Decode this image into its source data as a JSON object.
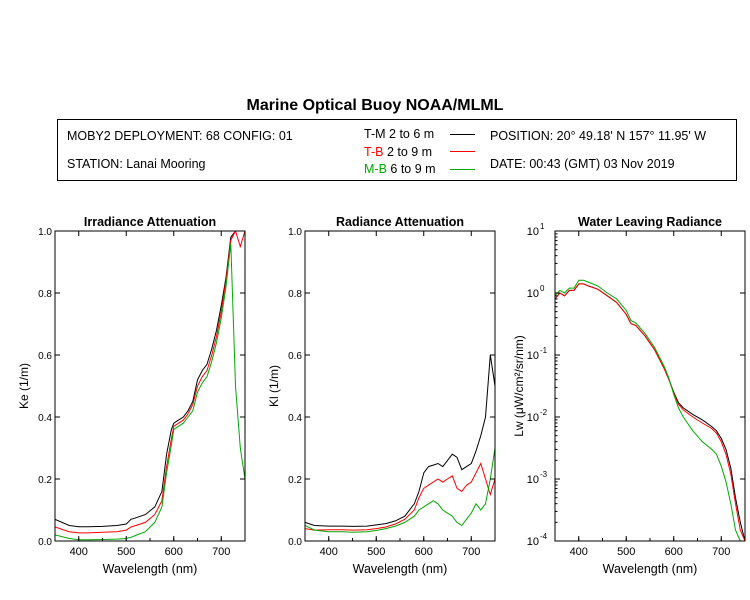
{
  "header": {
    "title": "Marine Optical Buoy NOAA/MLML"
  },
  "info": {
    "deployment": "MOBY2 DEPLOYMENT: 68 CONFIG: 01",
    "station": "STATION: Lanai Mooring",
    "position": "POSITION: 20° 49.18' N   157° 11.95' W",
    "date": "DATE: 00:43 (GMT) 03 Nov 2019",
    "legend": [
      {
        "code": "T-M",
        "range": "2 to 6  m",
        "color": "#000000"
      },
      {
        "code": "T-B",
        "range": "2 to 9  m",
        "color": "#ff0000"
      },
      {
        "code": "M-B",
        "range": "6 to 9  m",
        "color": "#00aa00"
      }
    ]
  },
  "chart_data": [
    {
      "type": "line",
      "title": "Irradiance Attenuation",
      "xlabel": "Wavelength (nm)",
      "ylabel": "Ke  (1/m)",
      "xlim": [
        350,
        750
      ],
      "ylim": [
        0,
        1.0
      ],
      "xticks": [
        "400",
        "500",
        "600",
        "700"
      ],
      "yticks": [
        "0.0",
        "0.2",
        "0.4",
        "0.6",
        "0.8",
        "1.0"
      ],
      "x": [
        350,
        380,
        400,
        420,
        450,
        480,
        500,
        510,
        520,
        540,
        560,
        575,
        585,
        595,
        600,
        610,
        620,
        630,
        640,
        650,
        660,
        670,
        680,
        690,
        700,
        710,
        720,
        730,
        740,
        750
      ],
      "series": [
        {
          "name": "T-M",
          "color": "#000000",
          "values": [
            0.07,
            0.05,
            0.046,
            0.046,
            0.047,
            0.05,
            0.055,
            0.07,
            0.075,
            0.085,
            0.11,
            0.16,
            0.28,
            0.36,
            0.38,
            0.39,
            0.4,
            0.42,
            0.45,
            0.52,
            0.55,
            0.57,
            0.62,
            0.68,
            0.76,
            0.85,
            0.98,
            1.0,
            1.0,
            1.0
          ]
        },
        {
          "name": "T-B",
          "color": "#ff0000",
          "values": [
            0.045,
            0.03,
            0.026,
            0.026,
            0.028,
            0.03,
            0.035,
            0.045,
            0.05,
            0.06,
            0.085,
            0.13,
            0.24,
            0.33,
            0.37,
            0.38,
            0.39,
            0.41,
            0.44,
            0.5,
            0.53,
            0.55,
            0.6,
            0.66,
            0.74,
            0.84,
            0.97,
            1.0,
            0.95,
            1.0
          ]
        },
        {
          "name": "M-B",
          "color": "#00aa00",
          "values": [
            0.02,
            0.008,
            0.004,
            0.004,
            0.005,
            0.006,
            0.008,
            0.012,
            0.018,
            0.03,
            0.06,
            0.11,
            0.22,
            0.31,
            0.36,
            0.37,
            0.38,
            0.4,
            0.42,
            0.48,
            0.51,
            0.53,
            0.58,
            0.64,
            0.72,
            0.82,
            0.96,
            0.5,
            0.3,
            0.2
          ]
        }
      ]
    },
    {
      "type": "line",
      "title": "Radiance Attenuation",
      "xlabel": "Wavelength (nm)",
      "ylabel": "Kl  (1/m)",
      "xlim": [
        350,
        750
      ],
      "ylim": [
        0,
        1.0
      ],
      "xticks": [
        "400",
        "500",
        "600",
        "700"
      ],
      "yticks": [
        "0.0",
        "0.2",
        "0.4",
        "0.6",
        "0.8",
        "1.0"
      ],
      "x": [
        350,
        370,
        400,
        430,
        450,
        480,
        500,
        520,
        540,
        560,
        580,
        590,
        600,
        610,
        620,
        630,
        640,
        650,
        660,
        670,
        680,
        690,
        700,
        710,
        720,
        730,
        740,
        750
      ],
      "series": [
        {
          "name": "T-M",
          "color": "#000000",
          "values": [
            0.06,
            0.05,
            0.048,
            0.048,
            0.047,
            0.048,
            0.052,
            0.056,
            0.065,
            0.08,
            0.12,
            0.16,
            0.22,
            0.24,
            0.245,
            0.25,
            0.24,
            0.26,
            0.28,
            0.27,
            0.23,
            0.24,
            0.25,
            0.29,
            0.34,
            0.4,
            0.6,
            0.5
          ]
        },
        {
          "name": "T-B",
          "color": "#ff0000",
          "values": [
            0.04,
            0.035,
            0.036,
            0.036,
            0.035,
            0.036,
            0.04,
            0.045,
            0.055,
            0.07,
            0.1,
            0.14,
            0.17,
            0.18,
            0.19,
            0.2,
            0.19,
            0.2,
            0.21,
            0.17,
            0.16,
            0.18,
            0.19,
            0.22,
            0.25,
            0.2,
            0.15,
            0.2
          ]
        },
        {
          "name": "M-B",
          "color": "#00aa00",
          "values": [
            0.05,
            0.035,
            0.03,
            0.03,
            0.028,
            0.03,
            0.034,
            0.04,
            0.048,
            0.06,
            0.08,
            0.1,
            0.11,
            0.12,
            0.13,
            0.12,
            0.1,
            0.09,
            0.08,
            0.06,
            0.05,
            0.07,
            0.09,
            0.12,
            0.1,
            0.12,
            0.2,
            0.3
          ]
        }
      ]
    },
    {
      "type": "line",
      "title": "Water Leaving Radiance",
      "xlabel": "Wavelength (nm)",
      "ylabel": "Lw  (μW/cm²/sr/nm)",
      "yscale": "log",
      "xlim": [
        350,
        750
      ],
      "ylim": [
        0.0001,
        10
      ],
      "xticks": [
        "400",
        "500",
        "600",
        "700"
      ],
      "yticks": [
        "10",
        "10",
        "10",
        "10",
        "10",
        "10"
      ],
      "yexps": [
        "-4",
        "-3",
        "-2",
        "-1",
        "0",
        "1"
      ],
      "x": [
        350,
        360,
        370,
        380,
        390,
        400,
        410,
        420,
        440,
        460,
        480,
        500,
        510,
        520,
        540,
        560,
        580,
        590,
        600,
        610,
        620,
        640,
        660,
        680,
        690,
        700,
        710,
        720,
        730,
        740,
        750
      ],
      "series": [
        {
          "name": "T-M",
          "color": "#000000",
          "values": [
            0.8,
            1.0,
            0.9,
            1.1,
            1.1,
            1.4,
            1.4,
            1.3,
            1.15,
            0.9,
            0.7,
            0.45,
            0.32,
            0.3,
            0.2,
            0.12,
            0.06,
            0.04,
            0.025,
            0.017,
            0.014,
            0.011,
            0.009,
            0.007,
            0.006,
            0.0045,
            0.003,
            0.0015,
            0.0005,
            0.0002,
            0.0001
          ]
        },
        {
          "name": "T-B",
          "color": "#ff0000",
          "values": [
            0.8,
            1.0,
            0.9,
            1.1,
            1.1,
            1.4,
            1.4,
            1.3,
            1.15,
            0.9,
            0.7,
            0.45,
            0.32,
            0.3,
            0.2,
            0.12,
            0.06,
            0.04,
            0.024,
            0.016,
            0.013,
            0.01,
            0.008,
            0.0065,
            0.0055,
            0.004,
            0.0025,
            0.0012,
            0.0004,
            0.00015,
            0.0001
          ]
        },
        {
          "name": "M-B",
          "color": "#00aa00",
          "values": [
            0.9,
            1.1,
            1.0,
            1.2,
            1.2,
            1.6,
            1.6,
            1.5,
            1.3,
            1.0,
            0.8,
            0.52,
            0.36,
            0.33,
            0.22,
            0.13,
            0.065,
            0.042,
            0.023,
            0.014,
            0.01,
            0.006,
            0.004,
            0.003,
            0.0025,
            0.0016,
            0.0009,
            0.0004,
            0.00015,
            0.0001,
            0.0001
          ]
        }
      ]
    }
  ]
}
